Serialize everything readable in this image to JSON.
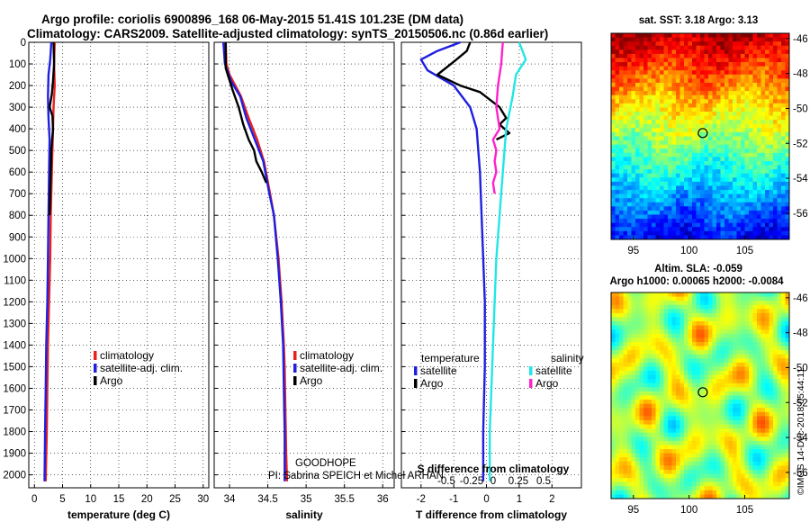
{
  "header": {
    "line1": "Argo profile: coriolis 6900896_168 06-May-2015 51.41S 101.23E (DM data)",
    "line2": "Climatology: CARS2009. Satellite-adjusted climatology: synTS_20150506.nc (0.86d earlier)"
  },
  "panels": {
    "sst_title": "sat. SST: 3.18 Argo: 3.13",
    "sla_title1": "Altim. SLA: -0.059",
    "sla_title2": "Argo h1000: 0.00065 h2000: -0.0084",
    "watermark": "©IMOS 14-Dec-2018 05:44:11",
    "lat_ticks": [
      "-46",
      "-48",
      "-50",
      "-52",
      "-54",
      "-56"
    ],
    "lon_ticks": [
      "95",
      "100",
      "105"
    ]
  },
  "annotations": {
    "project": "GOODHOPE",
    "pi": "PI: Sabrina SPEICH et Michel ARHAN"
  },
  "colors": {
    "climatology": "#e82020",
    "satellite": "#1f1fe0",
    "argo": "#000000",
    "sal_satellite": "#22e6e6",
    "sal_argo": "#ff22cc"
  },
  "chart_data": [
    {
      "type": "line",
      "title": "",
      "xlabel": "temperature (deg C)",
      "ylabel": "",
      "xlim": [
        -1,
        31
      ],
      "ylim": [
        2060,
        0
      ],
      "xticks": [
        0,
        5,
        10,
        15,
        20,
        25,
        30
      ],
      "yticks": [
        0,
        100,
        200,
        300,
        400,
        500,
        600,
        700,
        800,
        900,
        1000,
        1100,
        1200,
        1300,
        1400,
        1500,
        1600,
        1700,
        1800,
        1900,
        2000
      ],
      "legend": [
        "climatology",
        "satellite-adj. clim.",
        "Argo"
      ],
      "series": [
        {
          "name": "climatology",
          "x": [
            3.6,
            3.5,
            3.6,
            3.4,
            3.3,
            3.1,
            2.9,
            2.8,
            2.6,
            2.4,
            2.3,
            2.2,
            2.0
          ],
          "y": [
            0,
            100,
            200,
            300,
            400,
            600,
            800,
            1000,
            1200,
            1400,
            1600,
            1800,
            2030
          ]
        },
        {
          "name": "satellite-adj. clim.",
          "x": [
            3.0,
            2.8,
            2.5,
            2.4,
            2.5,
            2.7,
            2.6,
            2.5,
            2.4,
            2.3,
            2.1,
            2.0,
            1.9,
            1.8
          ],
          "y": [
            0,
            80,
            150,
            250,
            350,
            450,
            600,
            800,
            1000,
            1200,
            1400,
            1600,
            1800,
            2030
          ]
        },
        {
          "name": "Argo",
          "x": [
            3.4,
            3.5,
            3.3,
            3.1,
            2.7,
            3.2,
            3.3,
            3.0,
            2.9,
            2.8,
            2.7
          ],
          "y": [
            0,
            100,
            180,
            240,
            300,
            340,
            400,
            500,
            600,
            700,
            800
          ]
        }
      ]
    },
    {
      "type": "line",
      "title": "",
      "xlabel": "salinity",
      "ylabel": "",
      "xlim": [
        33.8,
        36.15
      ],
      "ylim": [
        2060,
        0
      ],
      "xticks": [
        34,
        34.5,
        35,
        35.5,
        36
      ],
      "legend": [
        "climatology",
        "satellite-adj. clim.",
        "Argo"
      ],
      "series": [
        {
          "name": "climatology",
          "x": [
            33.95,
            33.96,
            34.0,
            34.15,
            34.25,
            34.36,
            34.45,
            34.53,
            34.58,
            34.64,
            34.68,
            34.71,
            34.72,
            34.73,
            34.74,
            34.75
          ],
          "y": [
            0,
            100,
            150,
            250,
            350,
            450,
            550,
            700,
            800,
            1000,
            1200,
            1400,
            1500,
            1700,
            1900,
            2030
          ]
        },
        {
          "name": "satellite-adj. clim.",
          "x": [
            33.92,
            33.94,
            34.02,
            34.14,
            34.22,
            34.33,
            34.44,
            34.52,
            34.58,
            34.63,
            34.67,
            34.7,
            34.71,
            34.72,
            34.72
          ],
          "y": [
            0,
            100,
            180,
            250,
            350,
            450,
            550,
            700,
            800,
            1000,
            1200,
            1400,
            1600,
            1800,
            2030
          ]
        },
        {
          "name": "Argo",
          "x": [
            33.95,
            33.95,
            34.04,
            34.12,
            34.18,
            34.25,
            34.32,
            34.35,
            34.42,
            34.48
          ],
          "y": [
            0,
            120,
            220,
            300,
            380,
            450,
            500,
            550,
            600,
            650
          ]
        }
      ]
    },
    {
      "type": "line",
      "title": "",
      "xlabel": "T difference from climatology",
      "x2label": "S difference from climatology",
      "ylabel": "",
      "xlim": [
        -2.6,
        2.9
      ],
      "ylim": [
        2060,
        0
      ],
      "xticks": [
        -2,
        -1,
        0,
        1,
        2
      ],
      "x2ticks": [
        "-0.5",
        "-0.25",
        "0",
        "0.25",
        "0.5"
      ],
      "legend_temperature": {
        "title": "temperature",
        "items": [
          "satellite",
          "Argo"
        ]
      },
      "legend_salinity": {
        "title": "salinity",
        "items": [
          "satellite",
          "Argo"
        ]
      },
      "series": [
        {
          "name": "temperature satellite",
          "x": [
            -0.8,
            -1.5,
            -2.0,
            -1.8,
            -1.0,
            -0.5,
            -0.3,
            -0.2,
            -0.15,
            -0.1,
            -0.05,
            -0.05,
            -0.1,
            -0.1
          ],
          "y": [
            0,
            40,
            80,
            130,
            200,
            300,
            400,
            600,
            800,
            1000,
            1200,
            1500,
            1800,
            2030
          ]
        },
        {
          "name": "temperature Argo",
          "x": [
            -0.5,
            -0.6,
            -1.0,
            -1.5,
            -0.8,
            -0.2,
            0.4,
            0.6,
            0.4,
            0.7,
            0.3
          ],
          "y": [
            0,
            40,
            90,
            150,
            200,
            230,
            300,
            350,
            380,
            420,
            450
          ]
        },
        {
          "name": "salinity satellite",
          "x": [
            1.0,
            1.2,
            0.9,
            0.8,
            0.6,
            0.5,
            0.4,
            0.3,
            0.25,
            0.2,
            0.15,
            0.1,
            0.1
          ],
          "y": [
            0,
            80,
            150,
            250,
            400,
            600,
            800,
            1000,
            1200,
            1400,
            1600,
            1800,
            2030
          ]
        },
        {
          "name": "salinity Argo",
          "x": [
            0.5,
            0.45,
            0.35,
            0.3,
            0.4,
            0.2,
            0.3,
            0.25,
            0.3,
            0.2,
            0.25
          ],
          "y": [
            0,
            100,
            200,
            300,
            400,
            450,
            500,
            550,
            600,
            650,
            700
          ]
        }
      ]
    },
    {
      "type": "heatmap",
      "title": "sat. SST: 3.18 Argo: 3.13",
      "xlim": [
        93,
        109
      ],
      "ylim": [
        -57.5,
        -45.7
      ],
      "argo_position": {
        "lon": 101.23,
        "lat": -51.41
      }
    },
    {
      "type": "heatmap",
      "title": "Altim. SLA: -0.059",
      "xlim": [
        93,
        109
      ],
      "ylim": [
        -57.5,
        -45.7
      ],
      "argo_position": {
        "lon": 101.23,
        "lat": -51.41
      }
    }
  ]
}
